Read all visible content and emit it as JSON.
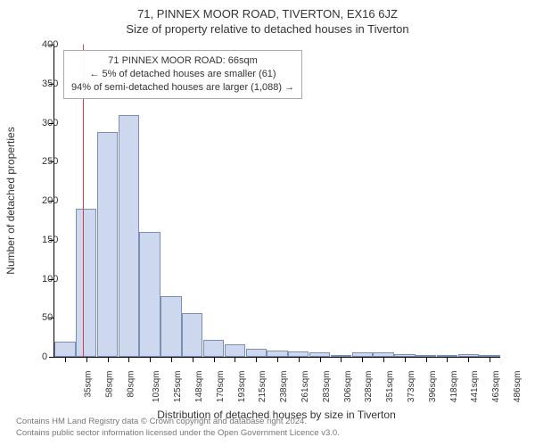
{
  "title_main": "71, PINNEX MOOR ROAD, TIVERTON, EX16 6JZ",
  "title_sub": "Size of property relative to detached houses in Tiverton",
  "chart": {
    "type": "histogram",
    "ylabel": "Number of detached properties",
    "xlabel": "Distribution of detached houses by size in Tiverton",
    "ylim": [
      0,
      400
    ],
    "ytick_step": 50,
    "yticks": [
      0,
      50,
      100,
      150,
      200,
      250,
      300,
      350,
      400
    ],
    "bar_fill": "#cdd8ef",
    "bar_stroke": "#7a8fb8",
    "background_color": "#ffffff",
    "axis_color": "#000000",
    "tick_fontsize": 11,
    "label_fontsize": 12,
    "title_fontsize": 13,
    "bars": [
      {
        "label": "35sqm",
        "value": 20
      },
      {
        "label": "58sqm",
        "value": 190
      },
      {
        "label": "80sqm",
        "value": 288
      },
      {
        "label": "103sqm",
        "value": 310
      },
      {
        "label": "125sqm",
        "value": 160
      },
      {
        "label": "148sqm",
        "value": 78
      },
      {
        "label": "170sqm",
        "value": 56
      },
      {
        "label": "193sqm",
        "value": 22
      },
      {
        "label": "215sqm",
        "value": 16
      },
      {
        "label": "238sqm",
        "value": 10
      },
      {
        "label": "261sqm",
        "value": 8
      },
      {
        "label": "283sqm",
        "value": 7
      },
      {
        "label": "306sqm",
        "value": 6
      },
      {
        "label": "328sqm",
        "value": 2
      },
      {
        "label": "351sqm",
        "value": 6
      },
      {
        "label": "373sqm",
        "value": 6
      },
      {
        "label": "396sqm",
        "value": 3
      },
      {
        "label": "418sqm",
        "value": 2
      },
      {
        "label": "441sqm",
        "value": 1
      },
      {
        "label": "463sqm",
        "value": 3
      },
      {
        "label": "486sqm",
        "value": 2
      }
    ],
    "marker_line": {
      "bin_index": 1,
      "offset": 0.35,
      "color": "#d04040"
    },
    "annotation": {
      "line1": "71 PINNEX MOOR ROAD: 66sqm",
      "line2": "← 5% of detached houses are smaller (61)",
      "line3": "94% of semi-detached houses are larger (1,088) →",
      "border_color": "#aaaaaa",
      "text_color": "#333333",
      "fontsize": 11
    }
  },
  "footer": {
    "line1": "Contains HM Land Registry data © Crown copyright and database right 2024.",
    "line2": "Contains public sector information licensed under the Open Government Licence v3.0.",
    "color": "#777777",
    "fontsize": 9.5
  }
}
